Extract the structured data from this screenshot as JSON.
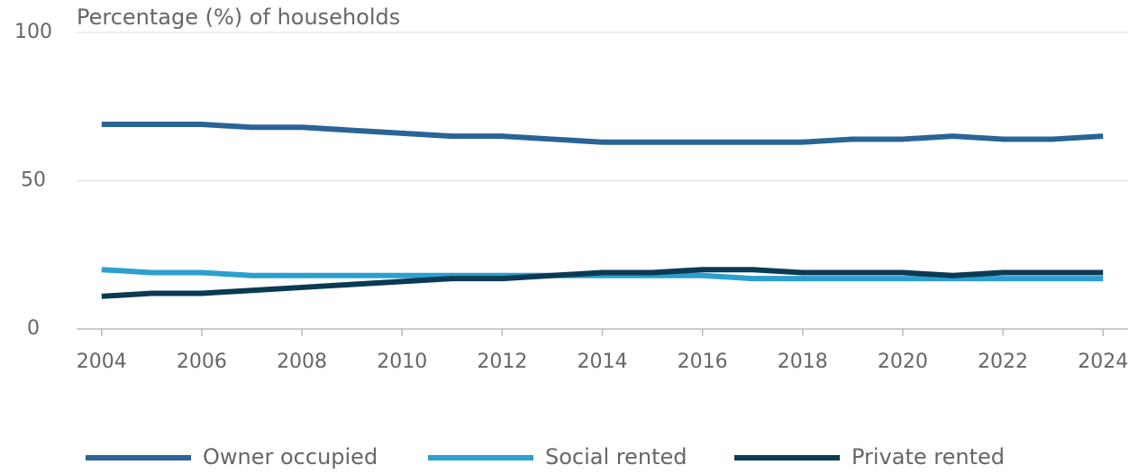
{
  "chart_data": {
    "type": "line",
    "y_axis_label": "Percentage (%) of households",
    "x": [
      2004,
      2005,
      2006,
      2007,
      2008,
      2009,
      2010,
      2011,
      2012,
      2013,
      2014,
      2015,
      2016,
      2017,
      2018,
      2019,
      2020,
      2021,
      2022,
      2023,
      2024
    ],
    "series": [
      {
        "name": "Owner occupied",
        "color": "#2a6496",
        "values": [
          69,
          69,
          69,
          68,
          68,
          67,
          66,
          65,
          65,
          64,
          63,
          63,
          63,
          63,
          63,
          64,
          64,
          65,
          64,
          64,
          65
        ]
      },
      {
        "name": "Social rented",
        "color": "#2ba0cf",
        "values": [
          20,
          19,
          19,
          18,
          18,
          18,
          18,
          18,
          18,
          18,
          18,
          18,
          18,
          17,
          17,
          17,
          17,
          17,
          17,
          17,
          17
        ]
      },
      {
        "name": "Private rented",
        "color": "#0b3a53",
        "values": [
          11,
          12,
          12,
          13,
          14,
          15,
          16,
          17,
          17,
          18,
          19,
          19,
          20,
          20,
          19,
          19,
          19,
          18,
          19,
          19,
          19
        ]
      }
    ],
    "xlim": [
      2003.5,
      2024.5
    ],
    "xticks": [
      2004,
      2006,
      2008,
      2010,
      2012,
      2014,
      2016,
      2018,
      2020,
      2022,
      2024
    ],
    "ylim": [
      0,
      100
    ],
    "yticks": [
      0,
      50,
      100
    ],
    "grid": true,
    "legend": "bottom"
  }
}
